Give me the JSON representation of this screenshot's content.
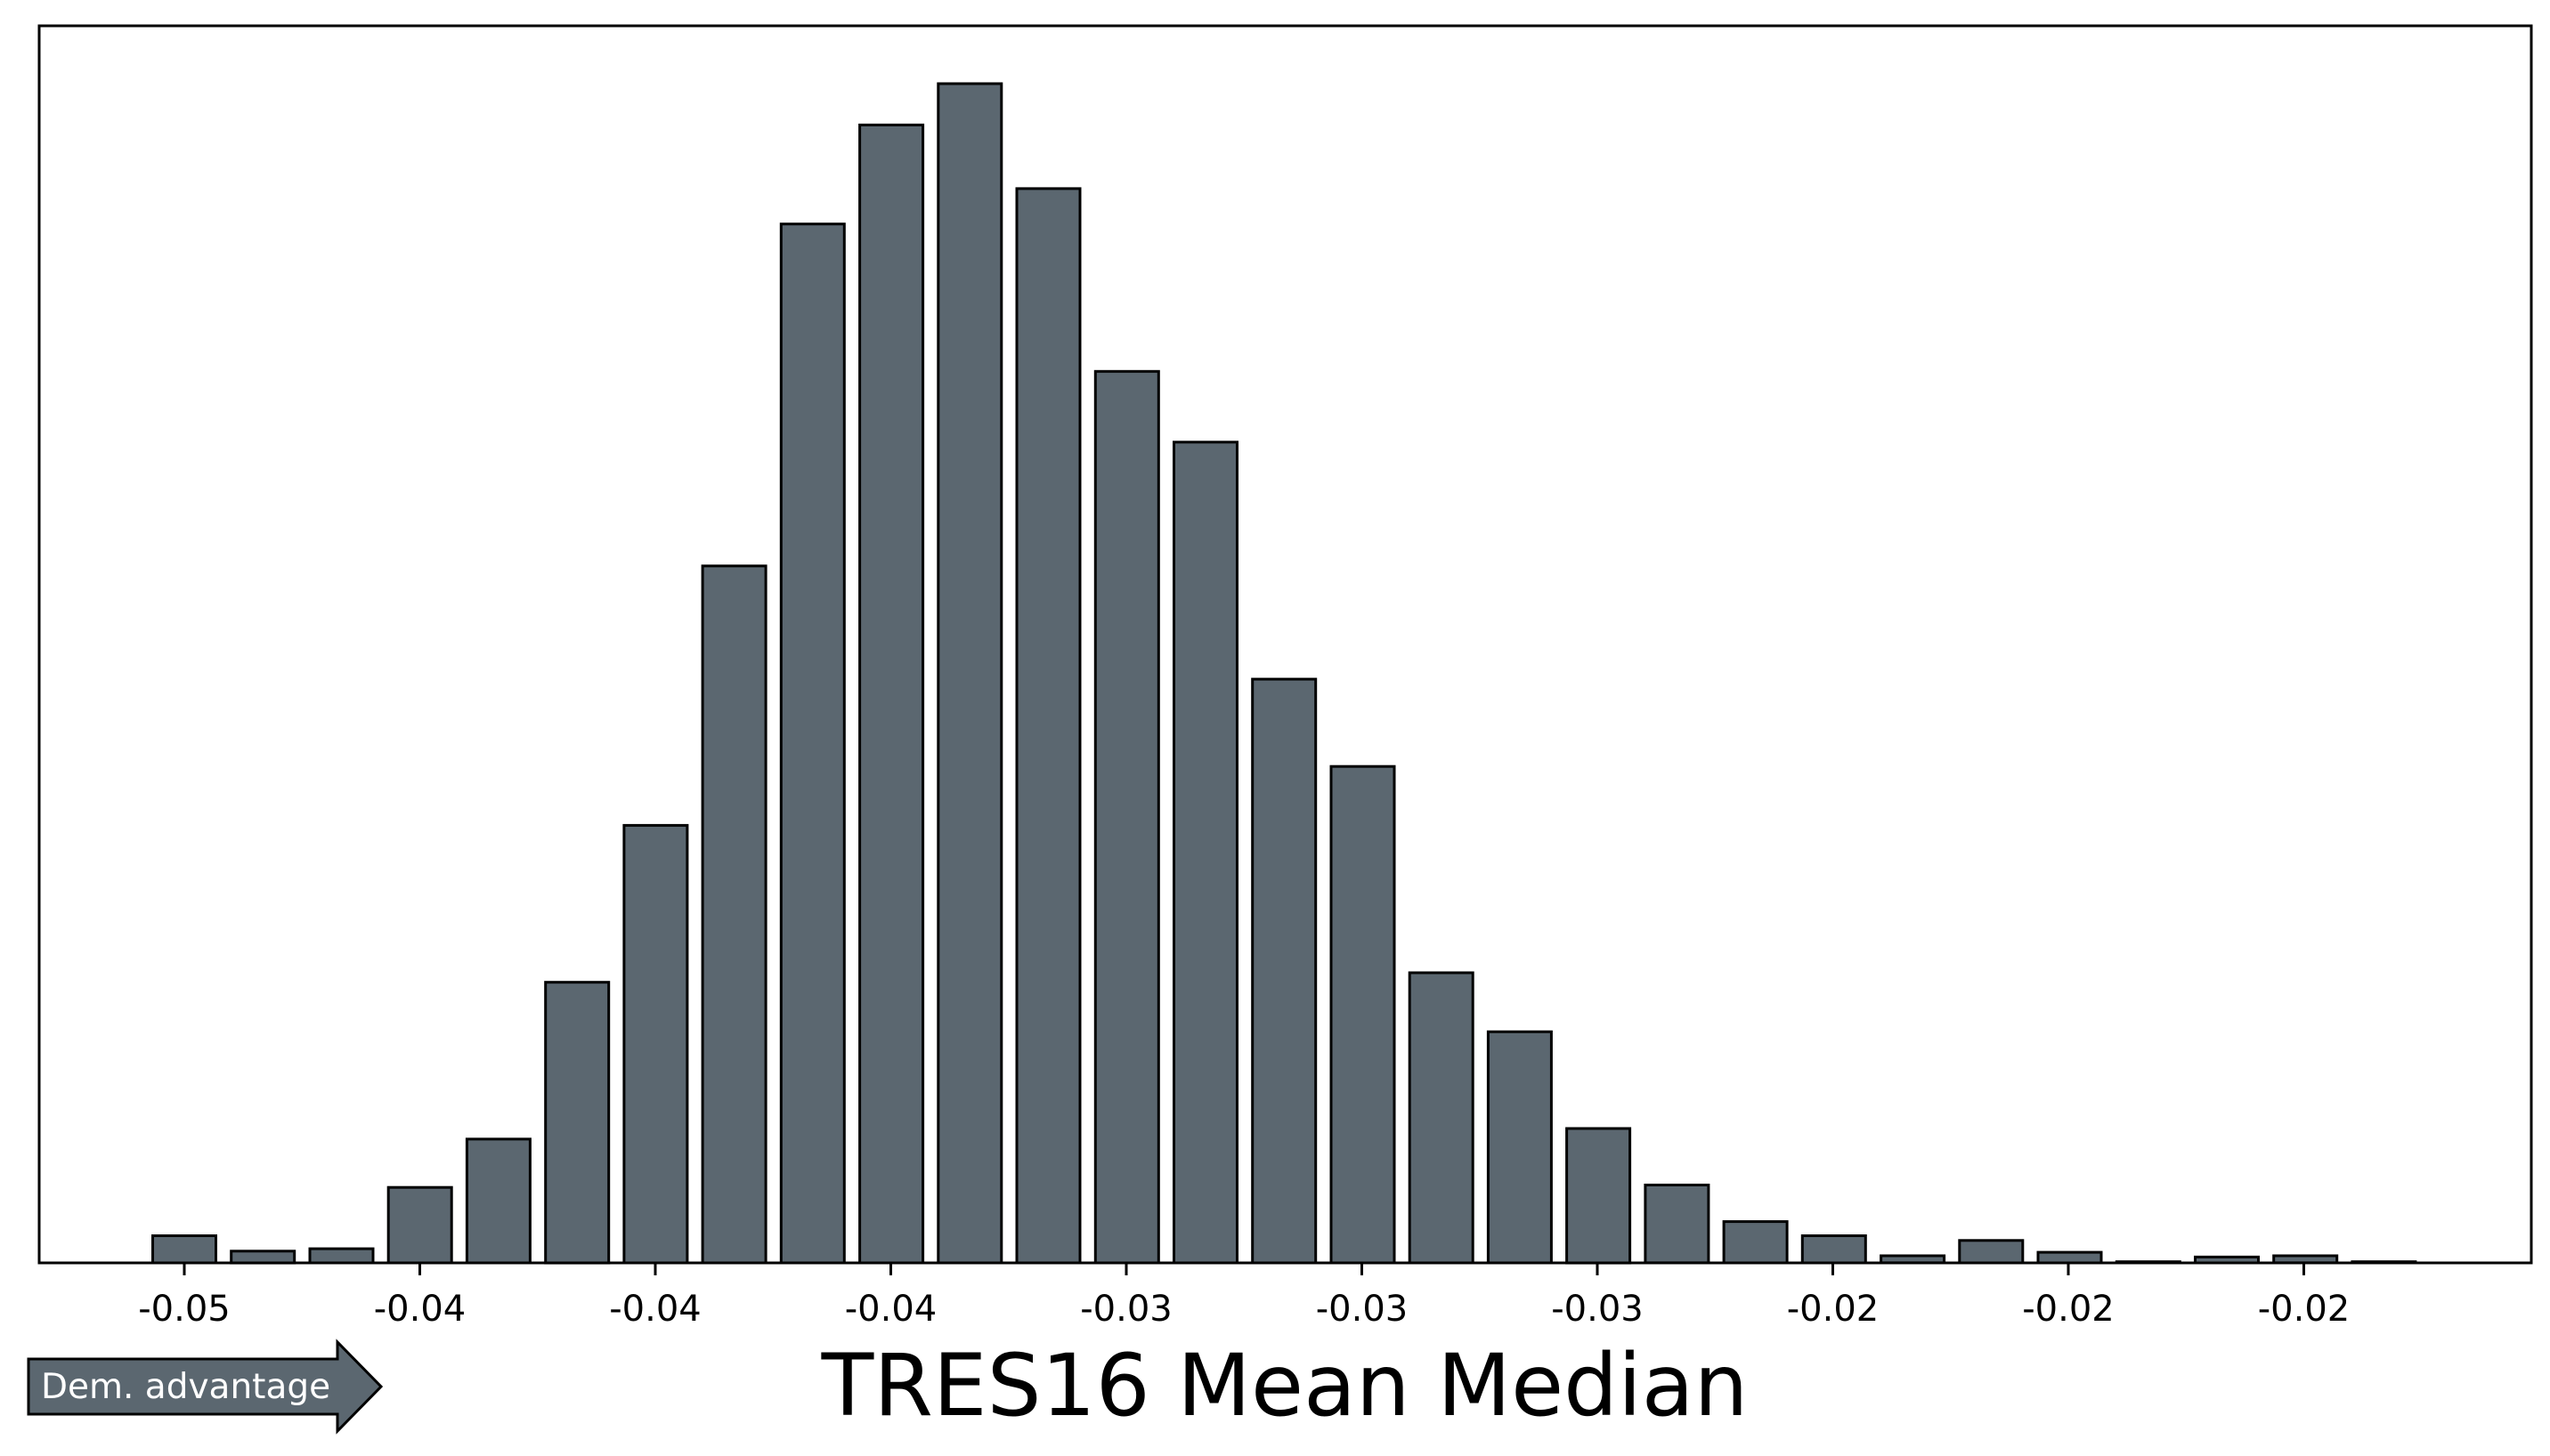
{
  "chart_data": {
    "type": "bar",
    "title": "",
    "xlabel": "TRES16 Mean Median",
    "ylabel": "",
    "y_axis_visible": false,
    "grid": false,
    "bar_color": "#5b6770",
    "edge_color": "#000000",
    "x_tick_labels": [
      "-0.05",
      "-0.04",
      "-0.04",
      "-0.04",
      "-0.03",
      "-0.03",
      "-0.03",
      "-0.02",
      "-0.02",
      "-0.02"
    ],
    "bin_count": 29,
    "relative_heights": [
      2.3,
      1.0,
      1.2,
      6.4,
      10.5,
      23.8,
      37.1,
      59.1,
      88.1,
      96.5,
      100.0,
      91.1,
      75.6,
      69.6,
      49.5,
      42.1,
      24.6,
      19.6,
      11.4,
      6.6,
      3.5,
      2.3,
      0.6,
      1.9,
      0.9,
      0.1,
      0.5,
      0.6,
      0.1
    ],
    "ylim": [
      0,
      105
    ]
  },
  "annotation": {
    "text": "Dem. advantage",
    "color": "#5b6770"
  }
}
